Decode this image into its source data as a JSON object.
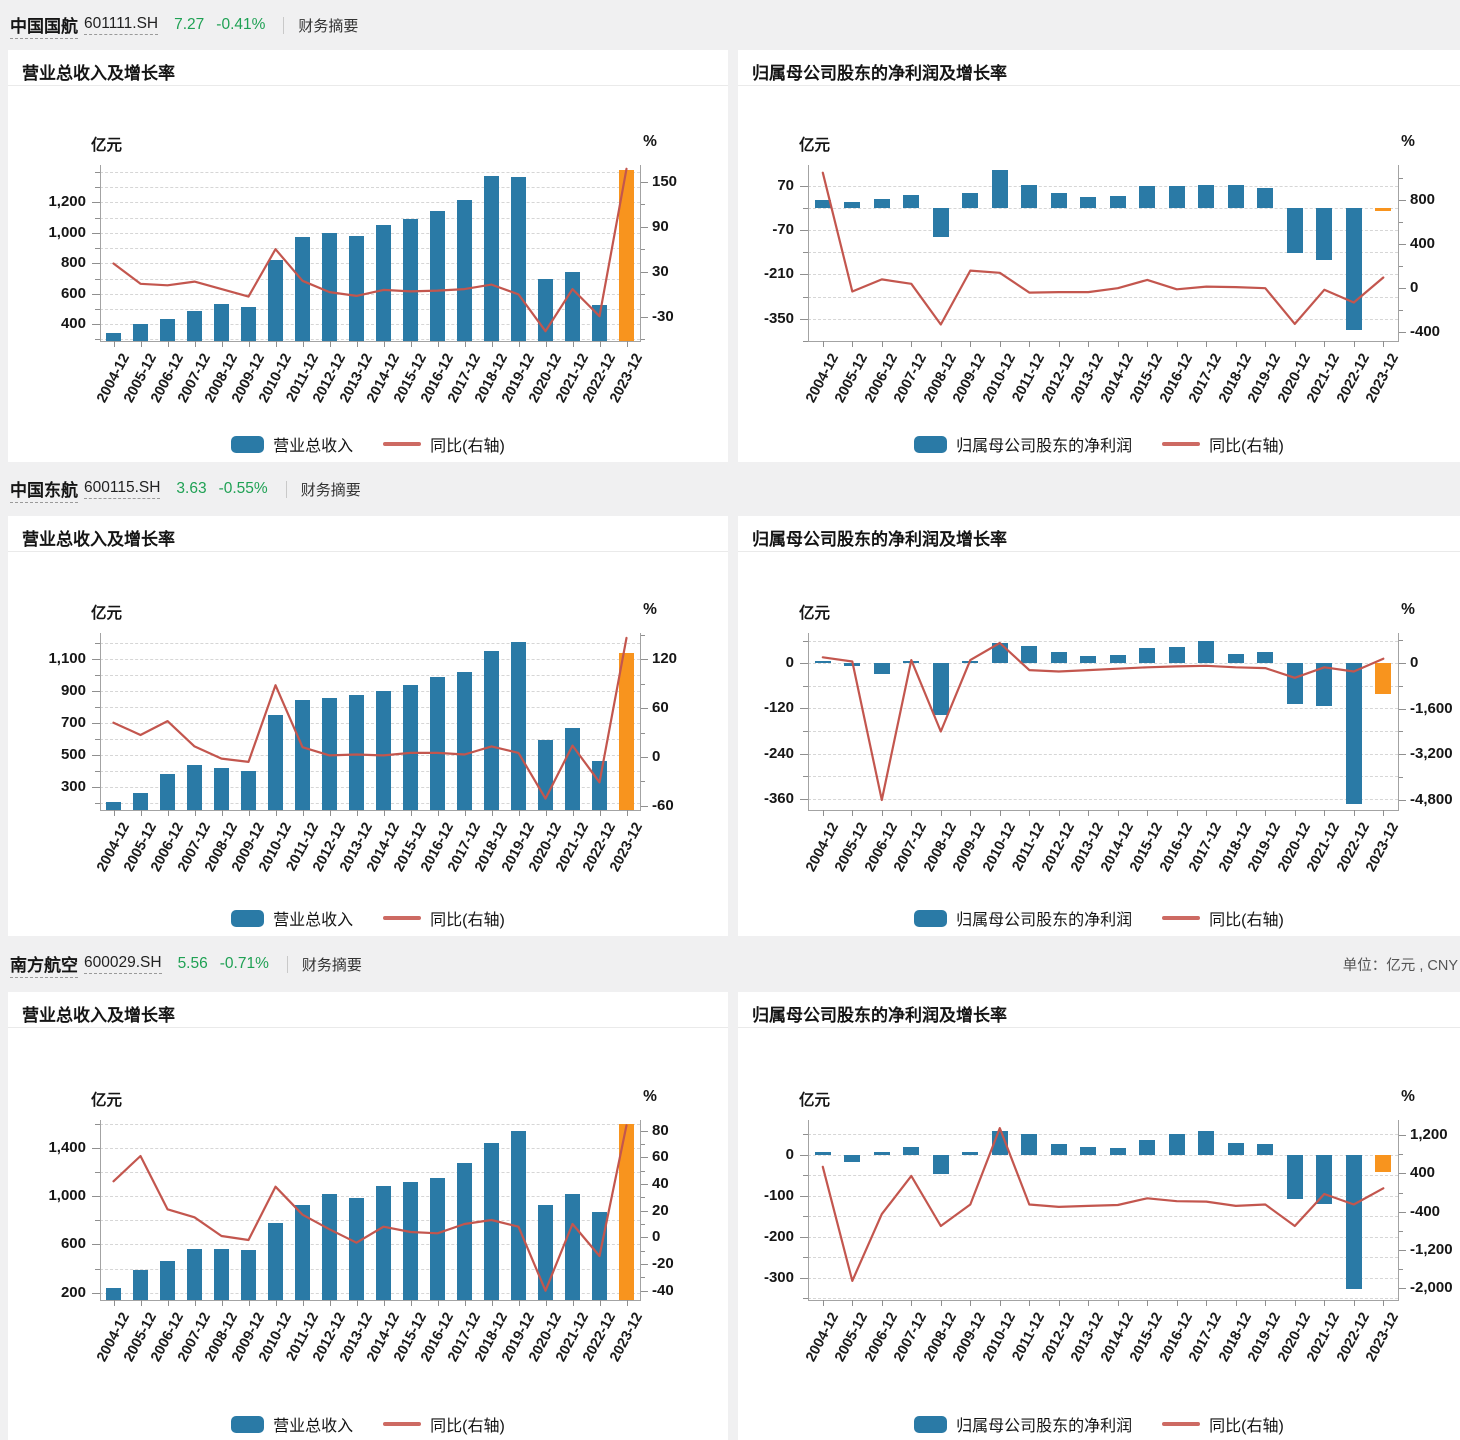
{
  "page": {
    "unit_note": "单位：亿元 , CNY"
  },
  "colors": {
    "bar_blue": "#2a7aa6",
    "bar_orange": "#f8941e",
    "line_red": "#c3564e",
    "legend_line": "#cd6a63",
    "green": "#1fa154",
    "grid": "#d6d6d6",
    "axis": "#a3a3a3"
  },
  "axis_units": {
    "left": "亿元",
    "right": "%"
  },
  "categories": [
    "2004-12",
    "2005-12",
    "2006-12",
    "2007-12",
    "2008-12",
    "2009-12",
    "2010-12",
    "2011-12",
    "2012-12",
    "2013-12",
    "2014-12",
    "2015-12",
    "2016-12",
    "2017-12",
    "2018-12",
    "2019-12",
    "2020-12",
    "2021-12",
    "2022-12",
    "2023-12"
  ],
  "companies": [
    {
      "name": "中国国航",
      "code": "601111.SH",
      "price": "7.27",
      "change": "-0.41%",
      "summary": "财务摘要"
    },
    {
      "name": "中国东航",
      "code": "600115.SH",
      "price": "3.63",
      "change": "-0.55%",
      "summary": "财务摘要"
    },
    {
      "name": "南方航空",
      "code": "600029.SH",
      "price": "5.56",
      "change": "-0.71%",
      "summary": "财务摘要"
    }
  ],
  "chart_data": [
    {
      "company": "中国国航",
      "kind": "revenue",
      "type": "bar+line",
      "title": "营业总收入及增长率",
      "legend_bar": "营业总收入",
      "legend_line": "同比(右轴)",
      "bars": [
        340,
        400,
        435,
        490,
        530,
        510,
        820,
        970,
        1000,
        980,
        1050,
        1090,
        1140,
        1215,
        1370,
        1365,
        695,
        745,
        528,
        1411
      ],
      "line": [
        41,
        14,
        12,
        17,
        7,
        -3,
        60,
        18,
        3,
        -2,
        6,
        4,
        5,
        7,
        13,
        0,
        -49,
        7,
        -29,
        167
      ],
      "left_axis": {
        "ticks": [
          1200,
          1000,
          800,
          600,
          400
        ],
        "minor": 100,
        "min": 290,
        "max": 1445
      },
      "right_axis": {
        "ticks": [
          150,
          90,
          30,
          -30
        ],
        "minor": 30,
        "min": -62,
        "max": 172
      }
    },
    {
      "company": "中国国航",
      "kind": "profit",
      "type": "bar+line",
      "title": "归属母公司股东的净利润及增长率",
      "legend_bar": "归属母公司股东的净利润",
      "legend_line": "同比(右轴)",
      "bars": [
        24,
        17,
        28,
        39,
        -93,
        48,
        120,
        71,
        46,
        33,
        38,
        68,
        68,
        72,
        73,
        64,
        -144,
        -166,
        -386,
        -10
      ],
      "line": [
        1050,
        -30,
        80,
        40,
        -330,
        160,
        140,
        -40,
        -35,
        -35,
        0,
        75,
        -10,
        15,
        10,
        0,
        -325,
        -15,
        -130,
        97
      ],
      "left_axis": {
        "ticks": [
          70,
          -70,
          -210,
          -350
        ],
        "minor": 70,
        "min": -420,
        "max": 135
      },
      "right_axis": {
        "ticks": [
          800,
          400,
          0,
          -400
        ],
        "minor": 200,
        "min": -480,
        "max": 1120
      }
    },
    {
      "company": "中国东航",
      "kind": "revenue",
      "type": "bar+line",
      "title": "营业总收入及增长率",
      "legend_bar": "营业总收入",
      "legend_line": "同比(右轴)",
      "bars": [
        208,
        262,
        380,
        435,
        420,
        400,
        750,
        840,
        855,
        875,
        898,
        938,
        985,
        1017,
        1145,
        1205,
        590,
        670,
        461,
        1137
      ],
      "line": [
        42,
        27,
        44,
        13,
        -2,
        -6,
        88,
        12,
        2,
        3,
        2,
        5,
        5,
        3,
        13,
        5,
        -51,
        14,
        -31,
        146
      ],
      "left_axis": {
        "ticks": [
          1100,
          900,
          700,
          500,
          300
        ],
        "minor": 100,
        "min": 155,
        "max": 1260
      },
      "right_axis": {
        "ticks": [
          120,
          60,
          0,
          -60
        ],
        "minor": 30,
        "min": -65,
        "max": 152
      }
    },
    {
      "company": "中国东航",
      "kind": "profit",
      "type": "bar+line",
      "title": "归属母公司股东的净利润及增长率",
      "legend_bar": "归属母公司股东的净利润",
      "legend_line": "同比(右轴)",
      "bars": [
        3,
        -2,
        -28,
        6,
        -139,
        5,
        54,
        46,
        29,
        18,
        22,
        40,
        42,
        60,
        24,
        29,
        -109,
        -115,
        -374,
        -82
      ],
      "line": [
        200,
        50,
        -4800,
        100,
        -2400,
        100,
        700,
        -250,
        -300,
        -250,
        -200,
        -150,
        -120,
        -100,
        -150,
        -180,
        -520,
        -150,
        -300,
        150
      ],
      "left_axis": {
        "ticks": [
          0,
          -120,
          -240,
          -360
        ],
        "minor": 60,
        "min": -390,
        "max": 80
      },
      "right_axis": {
        "ticks": [
          0,
          -1600,
          -3200,
          -4800
        ],
        "minor": 800,
        "min": -5150,
        "max": 1050
      }
    },
    {
      "company": "南方航空",
      "kind": "revenue",
      "type": "bar+line",
      "title": "营业总收入及增长率",
      "legend_bar": "营业总收入",
      "legend_line": "同比(右轴)",
      "bars": [
        240,
        390,
        465,
        560,
        565,
        558,
        775,
        925,
        1015,
        983,
        1083,
        1115,
        1147,
        1274,
        1436,
        1540,
        925,
        1016,
        870,
        1599
      ],
      "line": [
        42,
        61,
        21,
        15,
        1,
        -2,
        38,
        17,
        6,
        -4,
        8,
        4,
        3,
        10,
        13,
        8,
        -40,
        10,
        -14,
        84
      ],
      "left_axis": {
        "ticks": [
          1400,
          1000,
          600,
          200
        ],
        "minor": 200,
        "min": 140,
        "max": 1630
      },
      "right_axis": {
        "ticks": [
          80,
          60,
          40,
          20,
          0,
          -20,
          -40
        ],
        "minor": 10,
        "min": -47,
        "max": 88
      }
    },
    {
      "company": "南方航空",
      "kind": "profit",
      "type": "bar+line",
      "title": "归属母公司股东的净利润及增长率",
      "legend_bar": "归属母公司股东的净利润",
      "legend_line": "同比(右轴)",
      "bars": [
        8,
        -18,
        2,
        20,
        -48,
        5,
        58,
        51,
        26,
        19,
        17,
        37,
        50,
        59,
        30,
        26,
        -108,
        -121,
        -327,
        -42
      ],
      "line": [
        540,
        -1850,
        -450,
        350,
        -700,
        -250,
        1350,
        -250,
        -300,
        -280,
        -260,
        -120,
        -180,
        -190,
        -280,
        -250,
        -700,
        -30,
        -250,
        90
      ],
      "left_axis": {
        "ticks": [
          0,
          -100,
          -200,
          -300
        ],
        "minor": 50,
        "min": -355,
        "max": 85
      },
      "right_axis": {
        "ticks": [
          1200,
          400,
          -400,
          -1200,
          -2000
        ],
        "minor": 400,
        "min": -2250,
        "max": 1520
      }
    }
  ]
}
